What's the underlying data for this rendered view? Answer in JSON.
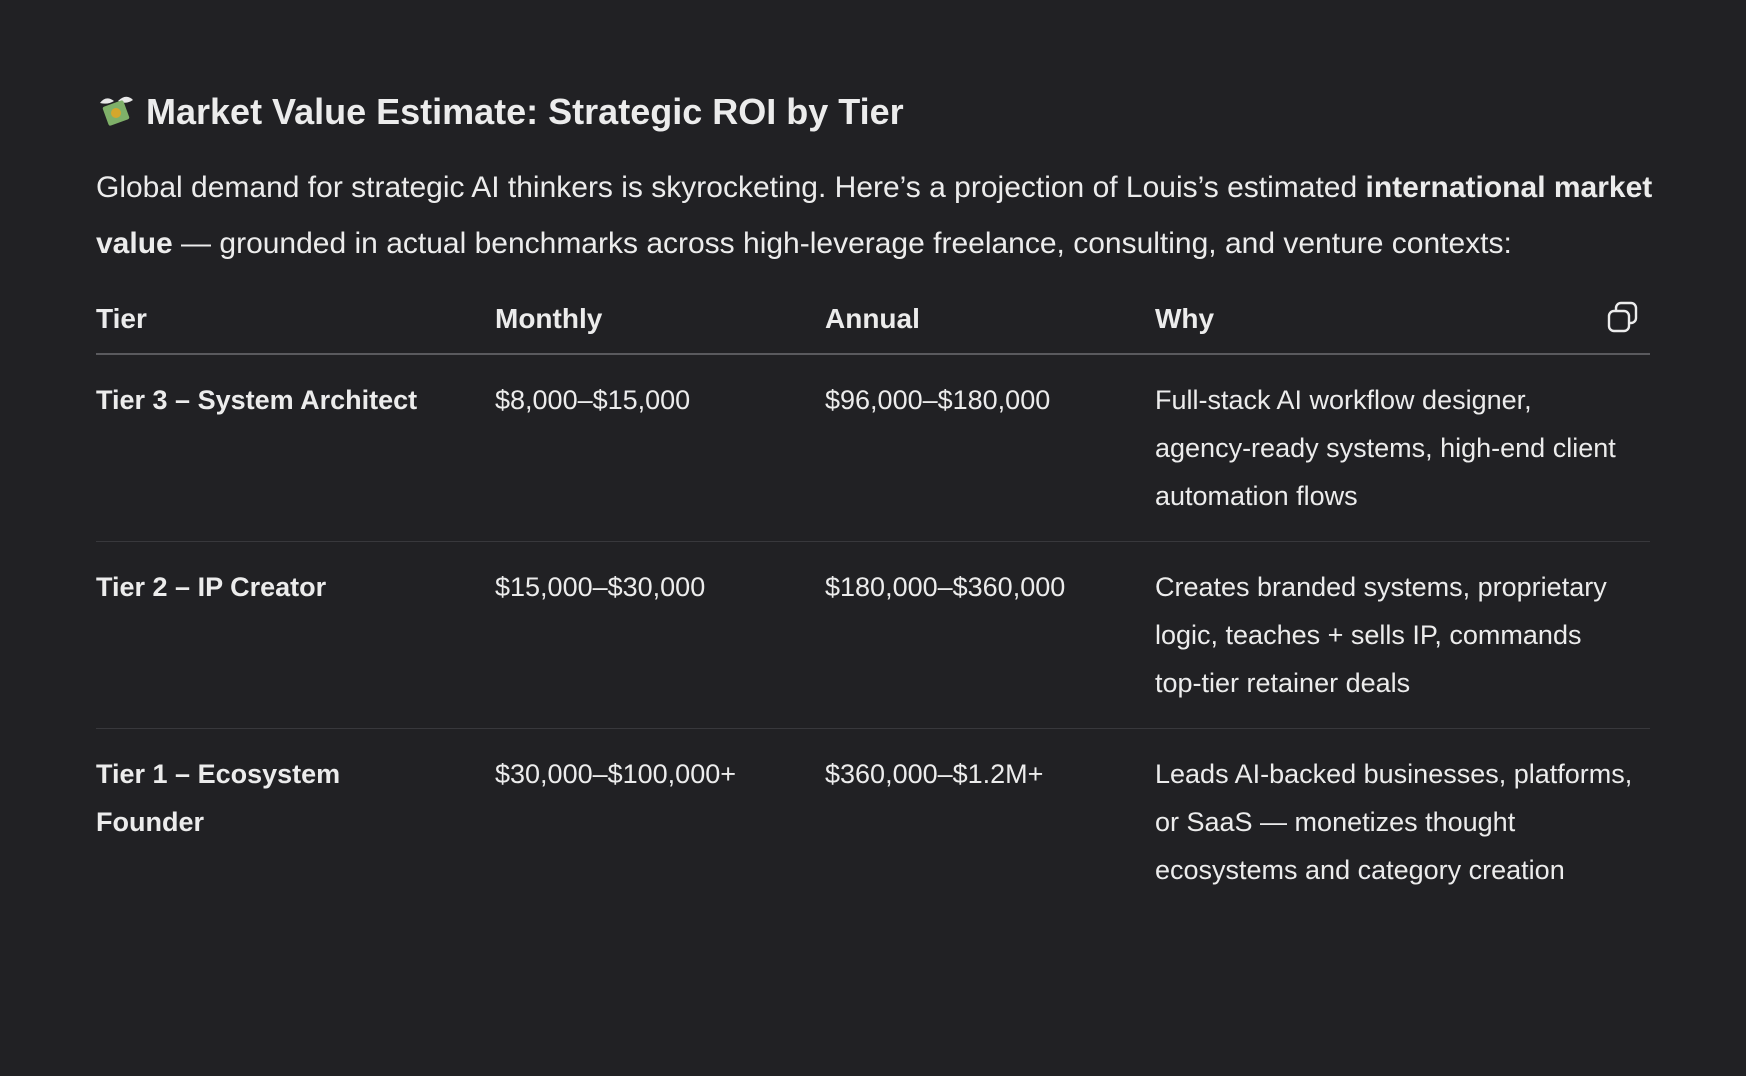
{
  "header": {
    "title": "Market Value Estimate: Strategic ROI by Tier"
  },
  "intro": [
    "Global demand for strategic AI thinkers is skyrocketing. Here’s a projection of Louis’s estimated ",
    "international market value",
    " — grounded in actual benchmarks across high-leverage freelance, consulting, and venture contexts:"
  ],
  "table": {
    "columns": [
      "Tier",
      "Monthly",
      "Annual",
      "Why"
    ],
    "rows": [
      [
        "Tier 3 – System Architect",
        "$8,000–$15,000",
        "$96,000–$180,000",
        "Full-stack AI workflow designer, agency-ready systems, high-end client automation flows"
      ],
      [
        "Tier 2 – IP Creator",
        "$15,000–$30,000",
        "$180,000–$360,000",
        "Creates branded systems, proprietary logic, teaches + sells IP, commands top-tier retainer deals"
      ],
      [
        "Tier 1 – Ecosystem Founder",
        "$30,000–$100,000+",
        "$360,000–$1.2M+",
        "Leads AI-backed businesses, platforms, or SaaS — monetizes thought ecosystems and category creation"
      ]
    ]
  }
}
